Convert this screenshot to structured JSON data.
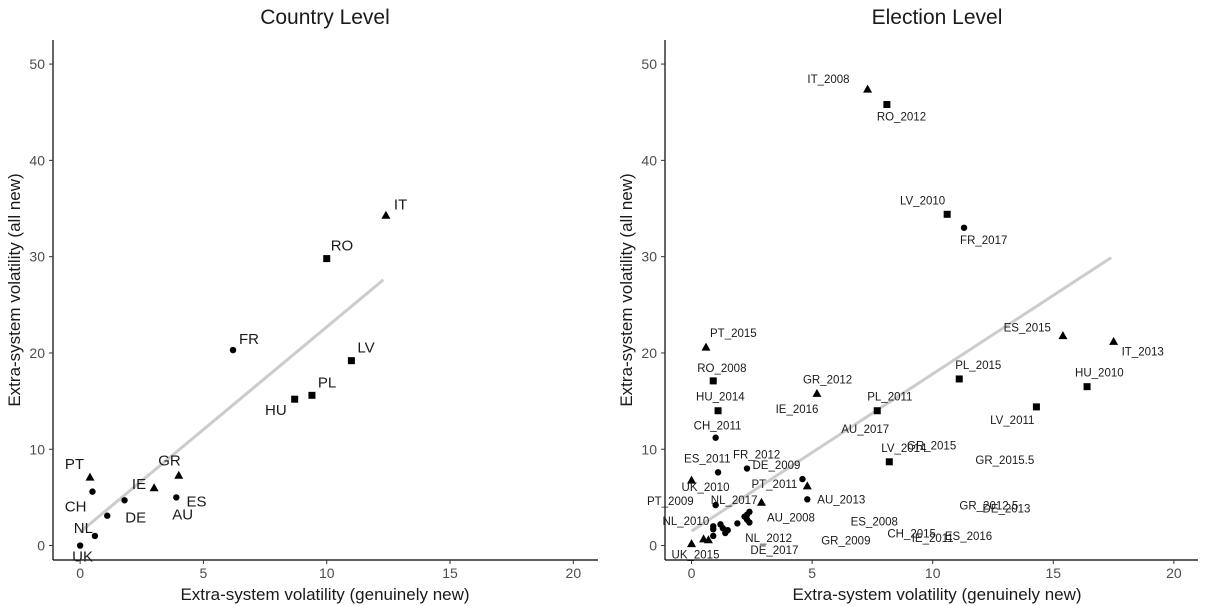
{
  "chart_data": [
    {
      "type": "scatter",
      "title": "Country Level",
      "xlabel": "Extra-system volatility (genuinely new)",
      "ylabel": "Extra-system volatility (all new)",
      "xlim": [
        -1.1,
        21
      ],
      "ylim": [
        -1.5,
        52.5
      ],
      "xticks": [
        0,
        5,
        10,
        15,
        20
      ],
      "yticks": [
        0,
        10,
        20,
        30,
        40,
        50
      ],
      "grid": false,
      "fit_line": {
        "x": [
          0,
          12.3
        ],
        "y": [
          1.4,
          27.6
        ],
        "color": "#cccccc"
      },
      "points": [
        {
          "label": "IT",
          "x": 12.4,
          "y": 34.3,
          "shape": "triangle"
        },
        {
          "label": "RO",
          "x": 10.0,
          "y": 29.8,
          "shape": "square"
        },
        {
          "label": "FR",
          "x": 6.2,
          "y": 20.3,
          "shape": "circle"
        },
        {
          "label": "LV",
          "x": 11.0,
          "y": 19.2,
          "shape": "square"
        },
        {
          "label": "PL",
          "x": 9.4,
          "y": 15.6,
          "shape": "square"
        },
        {
          "label": "HU",
          "x": 8.7,
          "y": 15.2,
          "shape": "square"
        },
        {
          "label": "PT",
          "x": 0.4,
          "y": 7.1,
          "shape": "triangle"
        },
        {
          "label": "CH",
          "x": 0.5,
          "y": 5.6,
          "shape": "circle"
        },
        {
          "label": "GR",
          "x": 4.0,
          "y": 7.3,
          "shape": "triangle"
        },
        {
          "label": "IE",
          "x": 3.0,
          "y": 6.0,
          "shape": "triangle"
        },
        {
          "label": "ES",
          "x": 1.8,
          "y": 4.7,
          "shape": "circle"
        },
        {
          "label": "AU",
          "x": 3.9,
          "y": 5.0,
          "shape": "circle"
        },
        {
          "label": "DE",
          "x": 1.1,
          "y": 3.1,
          "shape": "circle"
        },
        {
          "label": "NL",
          "x": 0.6,
          "y": 1.0,
          "shape": "circle"
        },
        {
          "label": "UK",
          "x": 0.0,
          "y": 0.0,
          "shape": "circle"
        }
      ]
    },
    {
      "type": "scatter",
      "title": "Election Level",
      "xlabel": "Extra-system volatility (genuinely new)",
      "ylabel": "Extra-system volatility (all new)",
      "xlim": [
        -1.1,
        21
      ],
      "ylim": [
        -1.5,
        52.5
      ],
      "xticks": [
        0,
        5,
        10,
        15,
        20
      ],
      "yticks": [
        0,
        10,
        20,
        30,
        40,
        50
      ],
      "grid": false,
      "fit_line": {
        "x": [
          0,
          17.4
        ],
        "y": [
          1.5,
          29.9
        ],
        "color": "#cccccc"
      },
      "points": [
        {
          "label": "IT_2008",
          "x": 7.3,
          "y": 47.4,
          "shape": "triangle"
        },
        {
          "label": "RO_2012",
          "x": 8.1,
          "y": 45.8,
          "shape": "square"
        },
        {
          "label": "LV_2010",
          "x": 10.6,
          "y": 34.4,
          "shape": "square"
        },
        {
          "label": "FR_2017",
          "x": 11.3,
          "y": 33.0,
          "shape": "circle"
        },
        {
          "label": "ES_2015",
          "x": 15.4,
          "y": 21.8,
          "shape": "triangle"
        },
        {
          "label": "IT_2013",
          "x": 17.5,
          "y": 21.2,
          "shape": "triangle"
        },
        {
          "label": "PT_2015",
          "x": 0.6,
          "y": 20.6,
          "shape": "triangle"
        },
        {
          "label": "PL_2015",
          "x": 11.1,
          "y": 17.3,
          "shape": "square"
        },
        {
          "label": "RO_2008",
          "x": 0.9,
          "y": 17.1,
          "shape": "square"
        },
        {
          "label": "HU_2010",
          "x": 16.4,
          "y": 16.5,
          "shape": "square"
        },
        {
          "label": "GR_2012",
          "x": 5.2,
          "y": 15.8,
          "shape": "triangle"
        },
        {
          "label": "LV_2011",
          "x": 14.3,
          "y": 14.4,
          "shape": "square"
        },
        {
          "label": "HU_2014",
          "x": 1.1,
          "y": 14.0,
          "shape": "square"
        },
        {
          "label": "PL_2011",
          "x": 7.7,
          "y": 14.0,
          "shape": "square"
        },
        {
          "label": "CH_2011",
          "x": 1.0,
          "y": 11.2,
          "shape": "circle"
        },
        {
          "label": "LV_2014",
          "x": 8.2,
          "y": 8.7,
          "shape": "square"
        },
        {
          "label": "FR_2012",
          "x": 2.3,
          "y": 8.0,
          "shape": "circle"
        },
        {
          "label": "ES_2011",
          "x": 1.1,
          "y": 7.6,
          "shape": "circle"
        },
        {
          "label": "DE_2009",
          "x": 4.6,
          "y": 6.9,
          "shape": "circle"
        },
        {
          "label": "UK_2010",
          "x": 0.0,
          "y": 6.8,
          "shape": "triangle"
        },
        {
          "label": "PT_2011",
          "x": 4.8,
          "y": 6.2,
          "shape": "triangle"
        },
        {
          "label": "AU_2013",
          "x": 4.8,
          "y": 4.8,
          "shape": "circle"
        },
        {
          "label": "NL_2017",
          "x": 2.9,
          "y": 4.5,
          "shape": "triangle"
        },
        {
          "label": "PT_2009",
          "x": 1.0,
          "y": 4.2,
          "shape": "circle"
        },
        {
          "label": "AU_2008",
          "x": 2.3,
          "y": 3.2,
          "shape": "circle"
        },
        {
          "label": "NL_2010",
          "x": 0.9,
          "y": 1.7,
          "shape": "circle"
        },
        {
          "label": "NL_2012",
          "x": 1.4,
          "y": 1.3,
          "shape": "circle"
        },
        {
          "label": "UK_2015",
          "x": 0.0,
          "y": 0.2,
          "shape": "triangle"
        },
        {
          "label": "DE_2017",
          "x": 0.7,
          "y": 0.6,
          "shape": "triangle"
        },
        {
          "label": "IE_2016",
          "x": 0.5,
          "y": 0.7,
          "shape": "triangle"
        },
        {
          "label": "AU_2017",
          "x": 0.9,
          "y": 1.0,
          "shape": "circle"
        },
        {
          "label": "GR_2015",
          "x": 2.3,
          "y": 2.7,
          "shape": "circle"
        },
        {
          "label": "GR_2015.5",
          "x": 2.4,
          "y": 3.5,
          "shape": "circle"
        },
        {
          "label": "GR_2012.5",
          "x": 2.4,
          "y": 2.4,
          "shape": "circle"
        },
        {
          "label": "GR_2009",
          "x": 0.9,
          "y": 2.0,
          "shape": "circle"
        },
        {
          "label": "DE_2013",
          "x": 1.2,
          "y": 2.2,
          "shape": "circle"
        },
        {
          "label": "ES_2008",
          "x": 2.2,
          "y": 3.0,
          "shape": "circle"
        },
        {
          "label": "ES_2016",
          "x": 1.3,
          "y": 1.8,
          "shape": "circle"
        },
        {
          "label": "IE_2011",
          "x": 1.5,
          "y": 1.6,
          "shape": "circle"
        },
        {
          "label": "CH_2015",
          "x": 1.9,
          "y": 2.3,
          "shape": "circle"
        }
      ]
    }
  ]
}
